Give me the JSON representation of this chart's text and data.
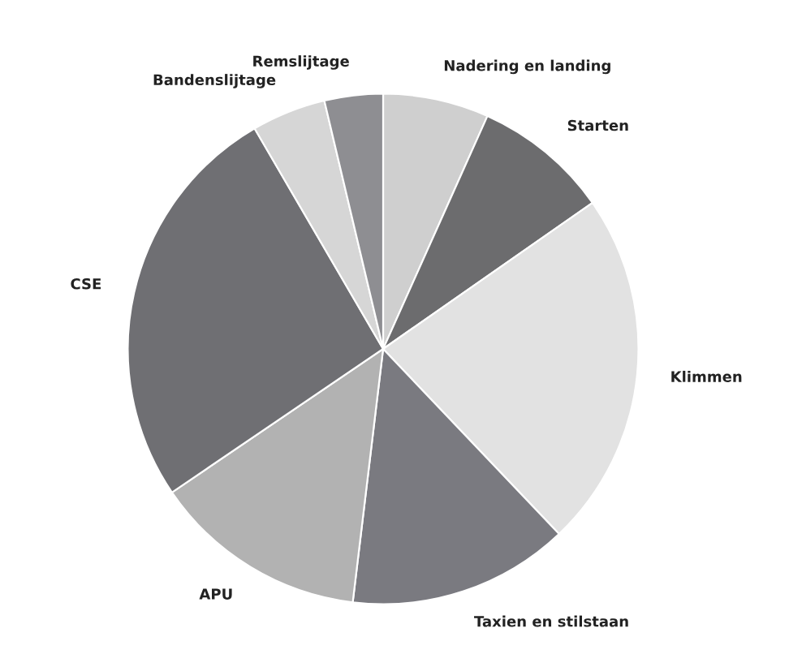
{
  "chart_data": {
    "type": "pie",
    "categories": [
      "Nadering en landing",
      "Starten",
      "Klimmen",
      "Taxien en stilstaan",
      "APU",
      "CSE",
      "Bandenslijtage",
      "Remslijtage"
    ],
    "values": [
      6.7,
      8.6,
      22.6,
      14.0,
      13.6,
      26.1,
      4.7,
      3.7
    ],
    "colors": [
      "#cfcfcf",
      "#6c6c6e",
      "#e2e2e2",
      "#7a7a80",
      "#b2b2b2",
      "#6f6f73",
      "#d6d6d6",
      "#8e8e92"
    ]
  }
}
